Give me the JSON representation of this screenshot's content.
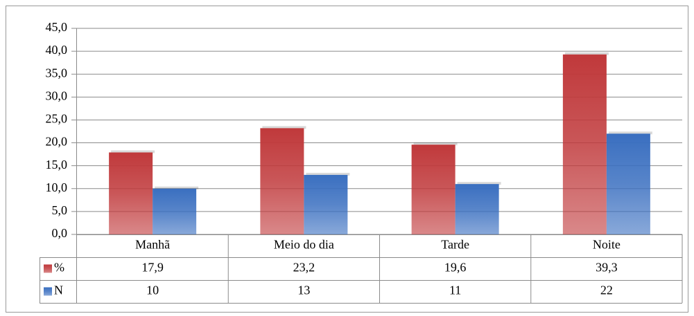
{
  "chart_data": {
    "type": "bar",
    "categories": [
      "Manhã",
      "Meio do dia",
      "Tarde",
      "Noite"
    ],
    "series": [
      {
        "name": "%",
        "color": "#c0393b",
        "values": [
          17.9,
          23.2,
          19.6,
          39.3
        ],
        "value_labels": [
          "17,9",
          "23,2",
          "19,6",
          "39,3"
        ]
      },
      {
        "name": "N",
        "color": "#3a6fc0",
        "values": [
          10,
          13,
          11,
          22
        ]
      }
    ],
    "ylim": [
      0,
      45
    ],
    "yticks": [
      {
        "value": 0,
        "label": "0,0"
      },
      {
        "value": 5,
        "label": "5,0"
      },
      {
        "value": 10,
        "label": "10,0"
      },
      {
        "value": 15,
        "label": "15,0"
      },
      {
        "value": 20,
        "label": "20,0"
      },
      {
        "value": 25,
        "label": "25,0"
      },
      {
        "value": 30,
        "label": "30,0"
      },
      {
        "value": 35,
        "label": "35,0"
      },
      {
        "value": 40,
        "label": "40,0"
      },
      {
        "value": 45,
        "label": "45,0"
      }
    ],
    "grid": true
  }
}
